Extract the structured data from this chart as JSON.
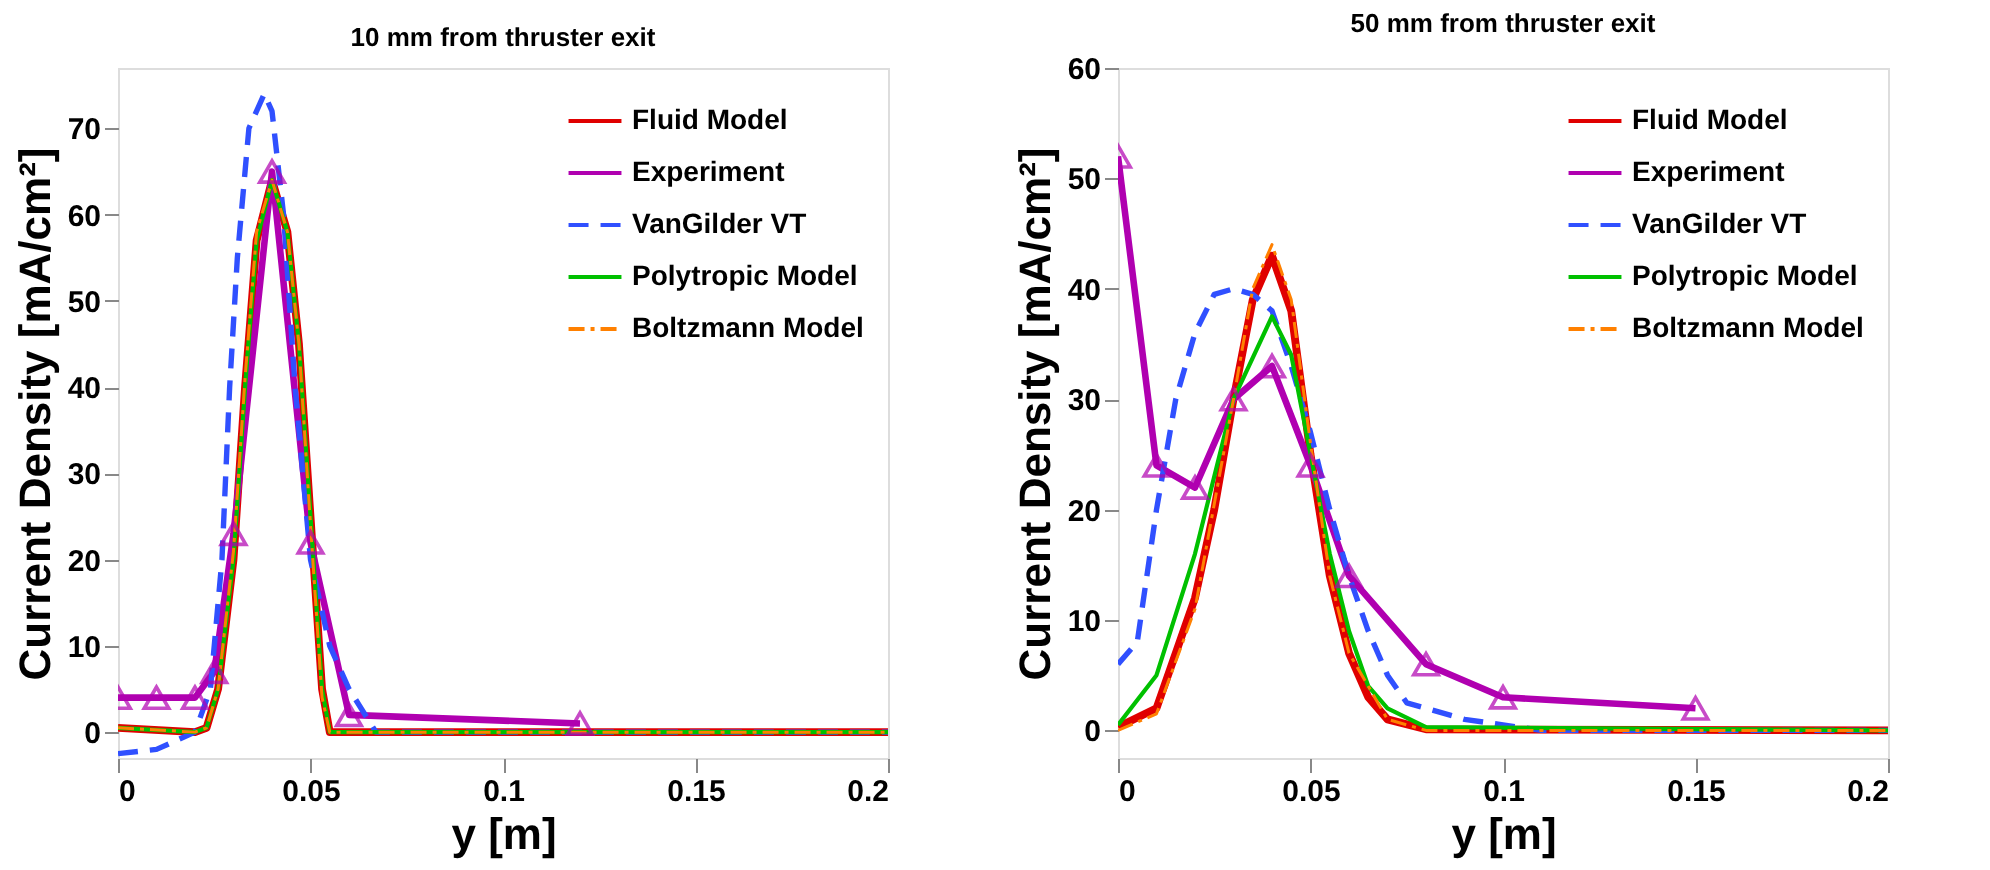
{
  "chart_data": [
    {
      "type": "line",
      "title": "10 mm from thruster exit",
      "xlabel": "y [m]",
      "ylabel": "Current Density [mA/cm²]",
      "xlim": [
        0,
        0.2
      ],
      "ylim": [
        -3,
        77
      ],
      "xticks": [
        0,
        0.05,
        0.1,
        0.15,
        0.2
      ],
      "yticks": [
        0,
        10,
        20,
        30,
        40,
        50,
        60,
        70
      ],
      "grid": false,
      "legend": "top right",
      "series": [
        {
          "name": "Fluid Model",
          "color": "#e00000",
          "line_style": "solid",
          "marker": "none",
          "x": [
            0,
            0.02,
            0.023,
            0.026,
            0.03,
            0.033,
            0.036,
            0.04,
            0.044,
            0.047,
            0.05,
            0.053,
            0.055,
            0.2
          ],
          "values": [
            0.5,
            0,
            0.5,
            5,
            20,
            40,
            57,
            64,
            58,
            45,
            25,
            5,
            0,
            0
          ]
        },
        {
          "name": "Experiment",
          "color": "#b000b0",
          "line_style": "solid",
          "marker": "triangle",
          "x": [
            0,
            0.01,
            0.02,
            0.025,
            0.03,
            0.04,
            0.05,
            0.06,
            0.12
          ],
          "values": [
            4,
            4,
            4,
            7,
            23,
            65,
            22,
            2,
            1
          ]
        },
        {
          "name": "VanGilder VT",
          "color": "#3050ff",
          "line_style": "dashed",
          "marker": "none",
          "x": [
            0,
            0.01,
            0.02,
            0.024,
            0.027,
            0.029,
            0.031,
            0.034,
            0.038,
            0.04,
            0.043,
            0.046,
            0.05,
            0.055,
            0.06,
            0.067,
            0.2
          ],
          "values": [
            -2.5,
            -2,
            0,
            5,
            20,
            40,
            55,
            70,
            74,
            72,
            60,
            40,
            20,
            10,
            5,
            0,
            0
          ]
        },
        {
          "name": "Polytropic Model",
          "color": "#00c000",
          "line_style": "solid",
          "marker": "none",
          "x": [
            0,
            0.02,
            0.023,
            0.026,
            0.03,
            0.033,
            0.036,
            0.04,
            0.044,
            0.047,
            0.05,
            0.053,
            0.055,
            0.2
          ],
          "values": [
            0.5,
            0,
            0.5,
            5,
            20,
            40,
            57,
            64,
            58,
            45,
            25,
            5,
            0,
            0
          ]
        },
        {
          "name": "Boltzmann Model",
          "color": "#ff8000",
          "line_style": "dashdot",
          "marker": "none",
          "x": [
            0,
            0.02,
            0.023,
            0.026,
            0.03,
            0.033,
            0.036,
            0.04,
            0.044,
            0.047,
            0.05,
            0.053,
            0.055,
            0.2
          ],
          "values": [
            0.5,
            0,
            0.5,
            5,
            21,
            41,
            58,
            64,
            58,
            45,
            24,
            4,
            0,
            0
          ]
        }
      ]
    },
    {
      "type": "line",
      "title": "50 mm from thruster exit",
      "xlabel": "y [m]",
      "ylabel": "Current Density [mA/cm²]",
      "xlim": [
        0,
        0.2
      ],
      "ylim": [
        -2.5,
        60
      ],
      "xticks": [
        0,
        0.05,
        0.1,
        0.15,
        0.2
      ],
      "yticks": [
        0,
        10,
        20,
        30,
        40,
        50,
        60
      ],
      "grid": false,
      "legend": "top right",
      "series": [
        {
          "name": "Fluid Model",
          "color": "#e00000",
          "line_style": "solid",
          "marker": "none",
          "x": [
            0,
            0.01,
            0.02,
            0.025,
            0.03,
            0.035,
            0.04,
            0.045,
            0.05,
            0.055,
            0.06,
            0.065,
            0.07,
            0.08,
            0.2
          ],
          "values": [
            0.3,
            2,
            12,
            20,
            30,
            39,
            43,
            38,
            25,
            14,
            7,
            3,
            1,
            0.1,
            0
          ]
        },
        {
          "name": "Experiment",
          "color": "#b000b0",
          "line_style": "solid",
          "marker": "triangle",
          "x": [
            0,
            0.01,
            0.02,
            0.03,
            0.04,
            0.05,
            0.06,
            0.08,
            0.1,
            0.15
          ],
          "values": [
            52,
            24,
            22,
            30,
            33,
            24,
            14,
            6,
            3,
            2
          ]
        },
        {
          "name": "VanGilder VT",
          "color": "#3050ff",
          "line_style": "dashed",
          "marker": "none",
          "x": [
            0,
            0.005,
            0.01,
            0.015,
            0.02,
            0.025,
            0.03,
            0.035,
            0.04,
            0.045,
            0.05,
            0.055,
            0.06,
            0.065,
            0.07,
            0.075,
            0.08,
            0.09,
            0.1,
            0.11,
            0.2
          ],
          "values": [
            6,
            8,
            20,
            30,
            36,
            39.5,
            40,
            39.5,
            38,
            33,
            27,
            20,
            14,
            9,
            5,
            2.5,
            2,
            1,
            0.5,
            0,
            0
          ]
        },
        {
          "name": "Polytropic Model",
          "color": "#00c000",
          "line_style": "solid",
          "marker": "none",
          "x": [
            0,
            0.01,
            0.02,
            0.03,
            0.04,
            0.045,
            0.05,
            0.055,
            0.06,
            0.065,
            0.07,
            0.08,
            0.2
          ],
          "values": [
            0.5,
            5,
            16,
            30,
            37.5,
            34,
            25,
            16,
            9,
            4,
            2,
            0.3,
            0
          ]
        },
        {
          "name": "Boltzmann Model",
          "color": "#ff8000",
          "line_style": "dashdot",
          "marker": "none",
          "x": [
            0,
            0.01,
            0.02,
            0.03,
            0.035,
            0.04,
            0.045,
            0.05,
            0.055,
            0.06,
            0.07,
            0.08,
            0.2
          ],
          "values": [
            0,
            1.5,
            11,
            30,
            40,
            44,
            39,
            26,
            14,
            7,
            1,
            0,
            0
          ]
        }
      ]
    }
  ]
}
